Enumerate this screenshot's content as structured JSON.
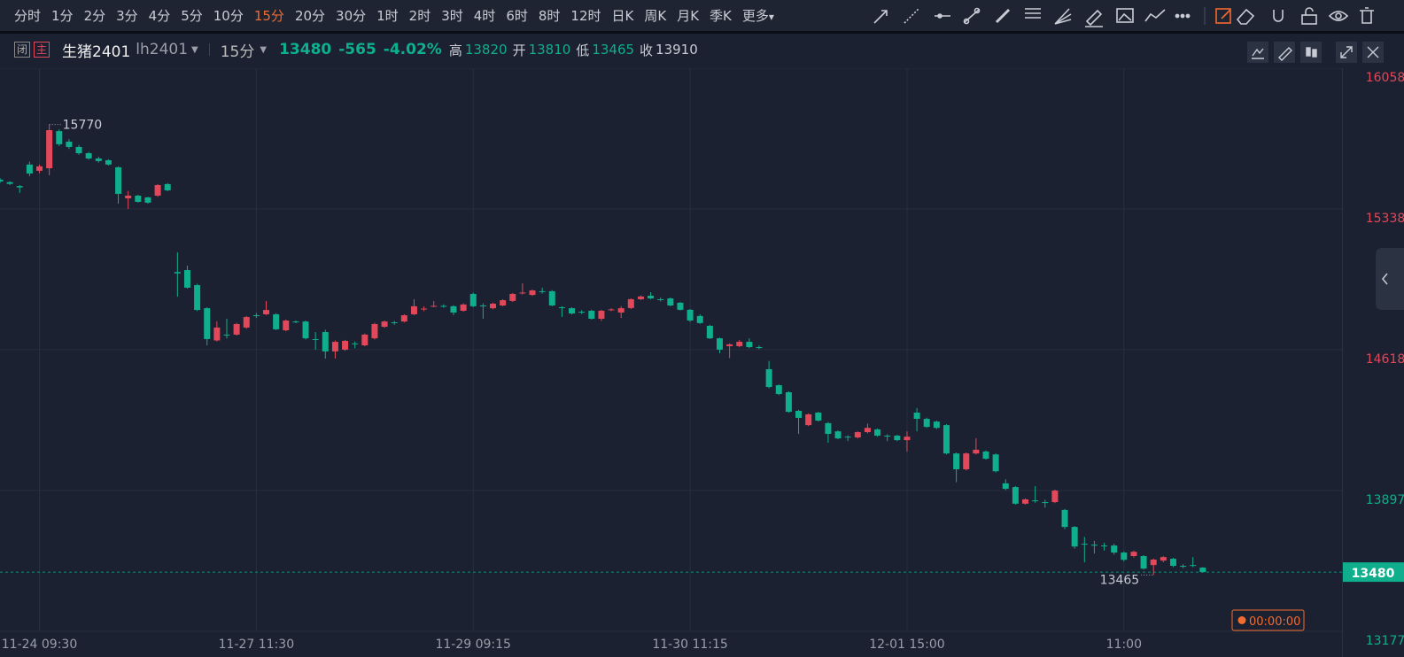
{
  "toolbar": {
    "periods": [
      "分时",
      "1分",
      "2分",
      "3分",
      "4分",
      "5分",
      "10分",
      "15分",
      "20分",
      "30分",
      "1时",
      "2时",
      "3时",
      "4时",
      "6时",
      "8时",
      "12时",
      "日K",
      "周K",
      "月K",
      "季K",
      "更多"
    ],
    "active_period": 7
  },
  "header": {
    "tag_close": "闭",
    "tag_main": "主",
    "name": "生猪2401",
    "code": "lh2401",
    "period": "15分",
    "last": 13480,
    "change": "-565",
    "change_pct": "-4.02%",
    "high_label": "高",
    "high": 13820,
    "open_label": "开",
    "open": 13810,
    "low_label": "低",
    "low": 13465,
    "close_label": "收",
    "close": 13910
  },
  "chart": {
    "type": "candlestick",
    "categories": [
      null,
      null,
      null,
      null,
      "11-24 09:30",
      null,
      null,
      null,
      null,
      null,
      null,
      null,
      null,
      null,
      null,
      null,
      null,
      null,
      null,
      null,
      null,
      null,
      null,
      null,
      null,
      null,
      "11-27 11:30",
      null,
      null,
      null,
      null,
      null,
      null,
      null,
      null,
      null,
      null,
      null,
      null,
      null,
      null,
      null,
      null,
      null,
      null,
      null,
      null,
      null,
      "11-29 09:15",
      null,
      null,
      null,
      null,
      null,
      null,
      null,
      null,
      null,
      null,
      null,
      null,
      null,
      null,
      null,
      null,
      null,
      null,
      null,
      null,
      null,
      "11-30 11:15",
      null,
      null,
      null,
      null,
      null,
      null,
      null,
      null,
      null,
      null,
      null,
      null,
      null,
      null,
      null,
      null,
      null,
      null,
      null,
      null,
      null,
      "12-01 15:00",
      null,
      null,
      null,
      null,
      null,
      null,
      null,
      null,
      null,
      null,
      null,
      null,
      null,
      null,
      null,
      null,
      null,
      null,
      null,
      null,
      null,
      "11:00",
      null,
      null,
      null,
      null,
      null,
      null,
      null,
      null
    ],
    "candles": [
      [
        15488,
        15497,
        15470,
        15478
      ],
      [
        15475,
        15480,
        15460,
        15466
      ],
      [
        15455,
        15460,
        15420,
        15448
      ],
      [
        15565,
        15580,
        15505,
        15519
      ],
      [
        15533,
        15565,
        15520,
        15556
      ],
      [
        15546,
        15770,
        15510,
        15741
      ],
      [
        15736,
        15745,
        15660,
        15669
      ],
      [
        15682,
        15695,
        15645,
        15655
      ],
      [
        15655,
        15665,
        15615,
        15623
      ],
      [
        15623,
        15630,
        15590,
        15596
      ],
      [
        15596,
        15605,
        15575,
        15583
      ],
      [
        15587,
        15592,
        15560,
        15565
      ],
      [
        15551,
        15556,
        15365,
        15415
      ],
      [
        15392,
        15430,
        15338,
        15406
      ],
      [
        15406,
        15410,
        15370,
        15374
      ],
      [
        15397,
        15400,
        15365,
        15370
      ],
      [
        15406,
        15465,
        15400,
        15460
      ],
      [
        15465,
        15470,
        15428,
        15433
      ],
      [
        15015,
        15116,
        14889,
        15008
      ],
      [
        15025,
        15048,
        14930,
        14935
      ],
      [
        14948,
        14955,
        14815,
        14821
      ],
      [
        14830,
        14835,
        14640,
        14672
      ],
      [
        14665,
        14763,
        14660,
        14731
      ],
      [
        14695,
        14776,
        14676,
        14692
      ],
      [
        14695,
        14755,
        14690,
        14749
      ],
      [
        14731,
        14790,
        14725,
        14785
      ],
      [
        14794,
        14805,
        14780,
        14790
      ],
      [
        14799,
        14867,
        14795,
        14821
      ],
      [
        14799,
        14805,
        14718,
        14722
      ],
      [
        14717,
        14772,
        14712,
        14767
      ],
      [
        14762,
        14767,
        14754,
        14758
      ],
      [
        14762,
        14767,
        14670,
        14676
      ],
      [
        14672,
        14708,
        14618,
        14670
      ],
      [
        14708,
        14720,
        14572,
        14609
      ],
      [
        14609,
        14665,
        14572,
        14658
      ],
      [
        14618,
        14668,
        14612,
        14663
      ],
      [
        14650,
        14660,
        14625,
        14648
      ],
      [
        14640,
        14700,
        14635,
        14695
      ],
      [
        14676,
        14755,
        14670,
        14749
      ],
      [
        14735,
        14767,
        14730,
        14762
      ],
      [
        14758,
        14765,
        14745,
        14755
      ],
      [
        14762,
        14799,
        14757,
        14794
      ],
      [
        14799,
        14876,
        14794,
        14840
      ],
      [
        14826,
        14840,
        14815,
        14828
      ],
      [
        14840,
        14867,
        14835,
        14842
      ],
      [
        14842,
        14850,
        14832,
        14840
      ],
      [
        14840,
        14845,
        14795,
        14808
      ],
      [
        14817,
        14855,
        14812,
        14849
      ],
      [
        14903,
        14910,
        14835,
        14840
      ],
      [
        14844,
        14855,
        14776,
        14842
      ],
      [
        14830,
        14858,
        14825,
        14853
      ],
      [
        14844,
        14876,
        14840,
        14871
      ],
      [
        14867,
        14908,
        14862,
        14903
      ],
      [
        14907,
        14957,
        14900,
        14910
      ],
      [
        14898,
        14926,
        14893,
        14921
      ],
      [
        14917,
        14935,
        14905,
        14915
      ],
      [
        14917,
        14922,
        14840,
        14844
      ],
      [
        14835,
        14840,
        14785,
        14833
      ],
      [
        14830,
        14835,
        14798,
        14803
      ],
      [
        14812,
        14820,
        14800,
        14810
      ],
      [
        14817,
        14822,
        14772,
        14776
      ],
      [
        14776,
        14822,
        14765,
        14817
      ],
      [
        14822,
        14830,
        14815,
        14824
      ],
      [
        14808,
        14840,
        14780,
        14830
      ],
      [
        14831,
        14880,
        14826,
        14876
      ],
      [
        14876,
        14895,
        14872,
        14890
      ],
      [
        14894,
        14912,
        14876,
        14880
      ],
      [
        14876,
        14885,
        14865,
        14874
      ],
      [
        14880,
        14885,
        14840,
        14844
      ],
      [
        14858,
        14862,
        14818,
        14822
      ],
      [
        14822,
        14826,
        14760,
        14767
      ],
      [
        14790,
        14799,
        14750,
        14754
      ],
      [
        14740,
        14745,
        14672,
        14676
      ],
      [
        14676,
        14680,
        14600,
        14618
      ],
      [
        14636,
        14650,
        14575,
        14645
      ],
      [
        14636,
        14667,
        14630,
        14658
      ],
      [
        14658,
        14676,
        14625,
        14631
      ],
      [
        14631,
        14640,
        14620,
        14629
      ],
      [
        14518,
        14560,
        14420,
        14427
      ],
      [
        14436,
        14440,
        14385,
        14391
      ],
      [
        14400,
        14405,
        14295,
        14300
      ],
      [
        14305,
        14310,
        14187,
        14269
      ],
      [
        14232,
        14292,
        14227,
        14287
      ],
      [
        14296,
        14300,
        14250,
        14255
      ],
      [
        14242,
        14248,
        14142,
        14187
      ],
      [
        14200,
        14205,
        14160,
        14164
      ],
      [
        14173,
        14180,
        14150,
        14171
      ],
      [
        14169,
        14200,
        14164,
        14196
      ],
      [
        14196,
        14240,
        14190,
        14218
      ],
      [
        14210,
        14215,
        14172,
        14178
      ],
      [
        14178,
        14185,
        14150,
        14176
      ],
      [
        14178,
        14182,
        14150,
        14155
      ],
      [
        14155,
        14200,
        14097,
        14173
      ],
      [
        14296,
        14320,
        14200,
        14264
      ],
      [
        14264,
        14270,
        14218,
        14223
      ],
      [
        14250,
        14255,
        14212,
        14218
      ],
      [
        14232,
        14237,
        14082,
        14087
      ],
      [
        14087,
        14092,
        13940,
        14006
      ],
      [
        14006,
        14092,
        14000,
        14087
      ],
      [
        14087,
        14165,
        14082,
        14106
      ],
      [
        14097,
        14102,
        14055,
        14060
      ],
      [
        14082,
        14087,
        13990,
        13996
      ],
      [
        13934,
        13955,
        13900,
        13906
      ],
      [
        13915,
        13920,
        13825,
        13830
      ],
      [
        13830,
        13857,
        13825,
        13852
      ],
      [
        13847,
        13920,
        13835,
        13845
      ],
      [
        13838,
        13850,
        13810,
        13836
      ],
      [
        13838,
        13902,
        13833,
        13897
      ],
      [
        13798,
        13803,
        13700,
        13711
      ],
      [
        13711,
        13716,
        13600,
        13611
      ],
      [
        13625,
        13660,
        13530,
        13623
      ],
      [
        13620,
        13640,
        13575,
        13618
      ],
      [
        13616,
        13630,
        13590,
        13614
      ],
      [
        13616,
        13625,
        13570,
        13580
      ],
      [
        13580,
        13585,
        13535,
        13543
      ],
      [
        13562,
        13590,
        13555,
        13584
      ],
      [
        13562,
        13567,
        13493,
        13498
      ],
      [
        13516,
        13549,
        13465,
        13544
      ],
      [
        13539,
        13562,
        13530,
        13557
      ],
      [
        13548,
        13553,
        13505,
        13512
      ],
      [
        13512,
        13520,
        13500,
        13510
      ],
      [
        13516,
        13557,
        13505,
        13514
      ],
      [
        13503,
        13505,
        13478,
        13480
      ]
    ],
    "up_color": "#e2485a",
    "down_color": "#0fae8c",
    "ylim": [
      13177,
      16058
    ],
    "yticks": [
      16058,
      15338,
      14618,
      13897,
      13177
    ],
    "grid": true,
    "countdown": "00:00:00"
  }
}
